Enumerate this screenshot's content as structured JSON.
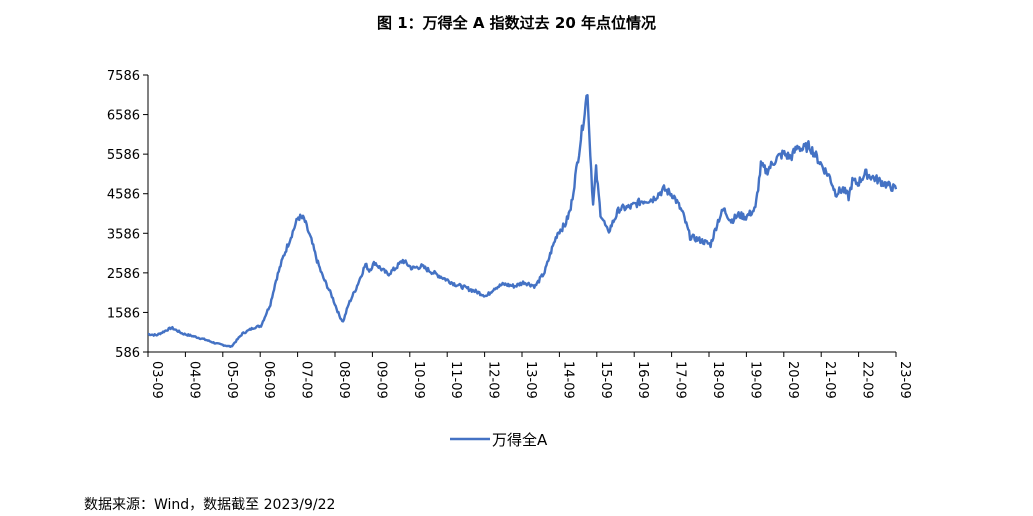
{
  "title": "图 1：万得全 A 指数过去 20 年点位情况",
  "source": "数据来源：Wind，数据截至 2023/9/22",
  "colors": {
    "series": "#4472C4",
    "axis": "#000000"
  },
  "chart_data": {
    "type": "line",
    "title": "图 1：万得全 A 指数过去 20 年点位情况",
    "xlabel": "",
    "ylabel": "",
    "ylim": [
      586,
      7586
    ],
    "yticks": [
      "7586",
      "6586",
      "5586",
      "4586",
      "3586",
      "2586",
      "1586",
      "586"
    ],
    "categories": [
      "03-09",
      "04-09",
      "05-09",
      "06-09",
      "07-09",
      "08-09",
      "09-09",
      "10-09",
      "11-09",
      "12-09",
      "13-09",
      "14-09",
      "15-09",
      "16-09",
      "17-09",
      "18-09",
      "19-09",
      "20-09",
      "21-09",
      "22-09",
      "23-09"
    ],
    "legend": "bottom",
    "series": [
      {
        "name": "万得全A",
        "x": [
          2003.67,
          2003.9,
          2004.3,
          2004.6,
          2004.9,
          2005.2,
          2005.5,
          2005.9,
          2006.2,
          2006.5,
          2006.7,
          2006.95,
          2007.1,
          2007.3,
          2007.5,
          2007.7,
          2007.85,
          2008.05,
          2008.2,
          2008.35,
          2008.6,
          2008.8,
          2008.9,
          2009.05,
          2009.25,
          2009.5,
          2009.6,
          2009.75,
          2009.9,
          2010.1,
          2010.3,
          2010.5,
          2010.75,
          2011.0,
          2011.3,
          2011.6,
          2011.9,
          2012.2,
          2012.5,
          2012.75,
          2012.95,
          2013.2,
          2013.5,
          2013.75,
          2014.05,
          2014.3,
          2014.5,
          2014.65,
          2014.85,
          2015.0,
          2015.2,
          2015.35,
          2015.45,
          2015.5,
          2015.6,
          2015.68,
          2015.8,
          2016.0,
          2016.05,
          2016.3,
          2016.6,
          2016.9,
          2017.2,
          2017.5,
          2017.75,
          2018.0,
          2018.2,
          2018.5,
          2018.75,
          2018.95,
          2019.1,
          2019.3,
          2019.5,
          2019.7,
          2019.95,
          2020.1,
          2020.25,
          2020.45,
          2020.55,
          2020.7,
          2020.9,
          2021.1,
          2021.2,
          2021.4,
          2021.6,
          2021.8,
          2021.95,
          2022.1,
          2022.3,
          2022.45,
          2022.55,
          2022.7,
          2022.9,
          2023.1,
          2023.3,
          2023.5,
          2023.72
        ],
        "values": [
          1040,
          1010,
          1200,
          1050,
          980,
          900,
          800,
          720,
          1050,
          1200,
          1250,
          1800,
          2400,
          3000,
          3500,
          4000,
          3950,
          3400,
          2900,
          2500,
          2000,
          1500,
          1350,
          1800,
          2200,
          2800,
          2650,
          2850,
          2700,
          2550,
          2700,
          2900,
          2700,
          2750,
          2600,
          2450,
          2300,
          2200,
          2100,
          2000,
          2200,
          2300,
          2250,
          2350,
          2250,
          2600,
          3200,
          3600,
          3800,
          4200,
          5500,
          6500,
          7200,
          6100,
          4300,
          5200,
          4100,
          3600,
          3700,
          4200,
          4250,
          4400,
          4450,
          4700,
          4550,
          4100,
          3500,
          3400,
          3300,
          3900,
          4200,
          3900,
          4050,
          4000,
          4200,
          5300,
          5150,
          5400,
          5500,
          5600,
          5500,
          5800,
          5700,
          5800,
          5500,
          5200,
          5000,
          4600,
          4700,
          4500,
          4900,
          4850,
          5100,
          5000,
          4900,
          4800,
          4700
        ]
      }
    ]
  }
}
